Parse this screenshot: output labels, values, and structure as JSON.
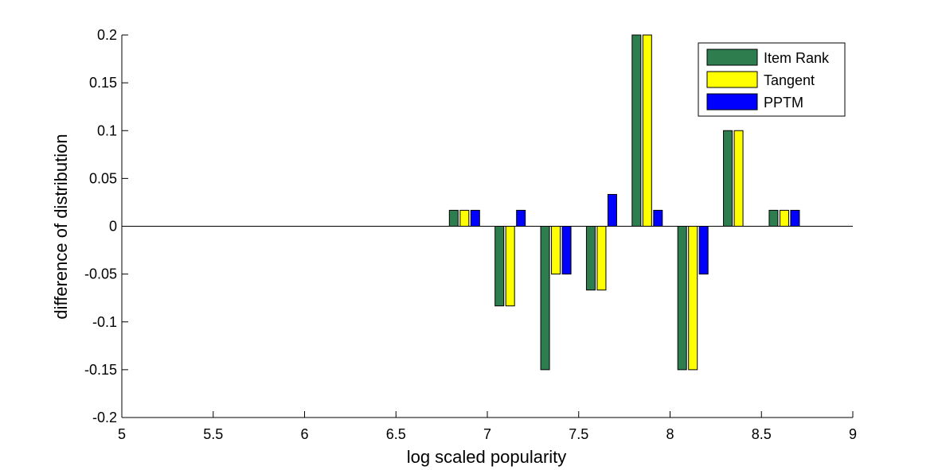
{
  "chart_data": {
    "type": "bar",
    "xlabel": "log scaled popularity",
    "ylabel": "difference of distribution",
    "xlim": [
      5,
      9
    ],
    "ylim": [
      -0.2,
      0.2
    ],
    "xticks": [
      "5",
      "5.5",
      "6",
      "6.5",
      "7",
      "7.5",
      "8",
      "8.5",
      "9"
    ],
    "yticks": [
      "0.2",
      "0.15",
      "0.1",
      "0.05",
      "0",
      "-0.05",
      "-0.1",
      "-0.15",
      "-0.2"
    ],
    "grid": false,
    "legend_position": "top-right",
    "x": [
      6.875,
      7.125,
      7.375,
      7.625,
      7.875,
      8.125,
      8.375,
      8.625
    ],
    "series": [
      {
        "name": "Item Rank",
        "color": "#2e7d4f",
        "values": [
          0.0167,
          -0.0833,
          -0.15,
          -0.0667,
          0.2,
          -0.15,
          0.1,
          0.0167
        ]
      },
      {
        "name": "Tangent",
        "color": "#ffff00",
        "values": [
          0.0167,
          -0.0833,
          -0.05,
          -0.0667,
          0.2,
          -0.15,
          0.1,
          0.0167
        ]
      },
      {
        "name": "PPTM",
        "color": "#0000ff",
        "values": [
          0.0167,
          0.0167,
          -0.05,
          0.0333,
          0.0167,
          -0.05,
          0,
          0.0167
        ]
      }
    ]
  }
}
